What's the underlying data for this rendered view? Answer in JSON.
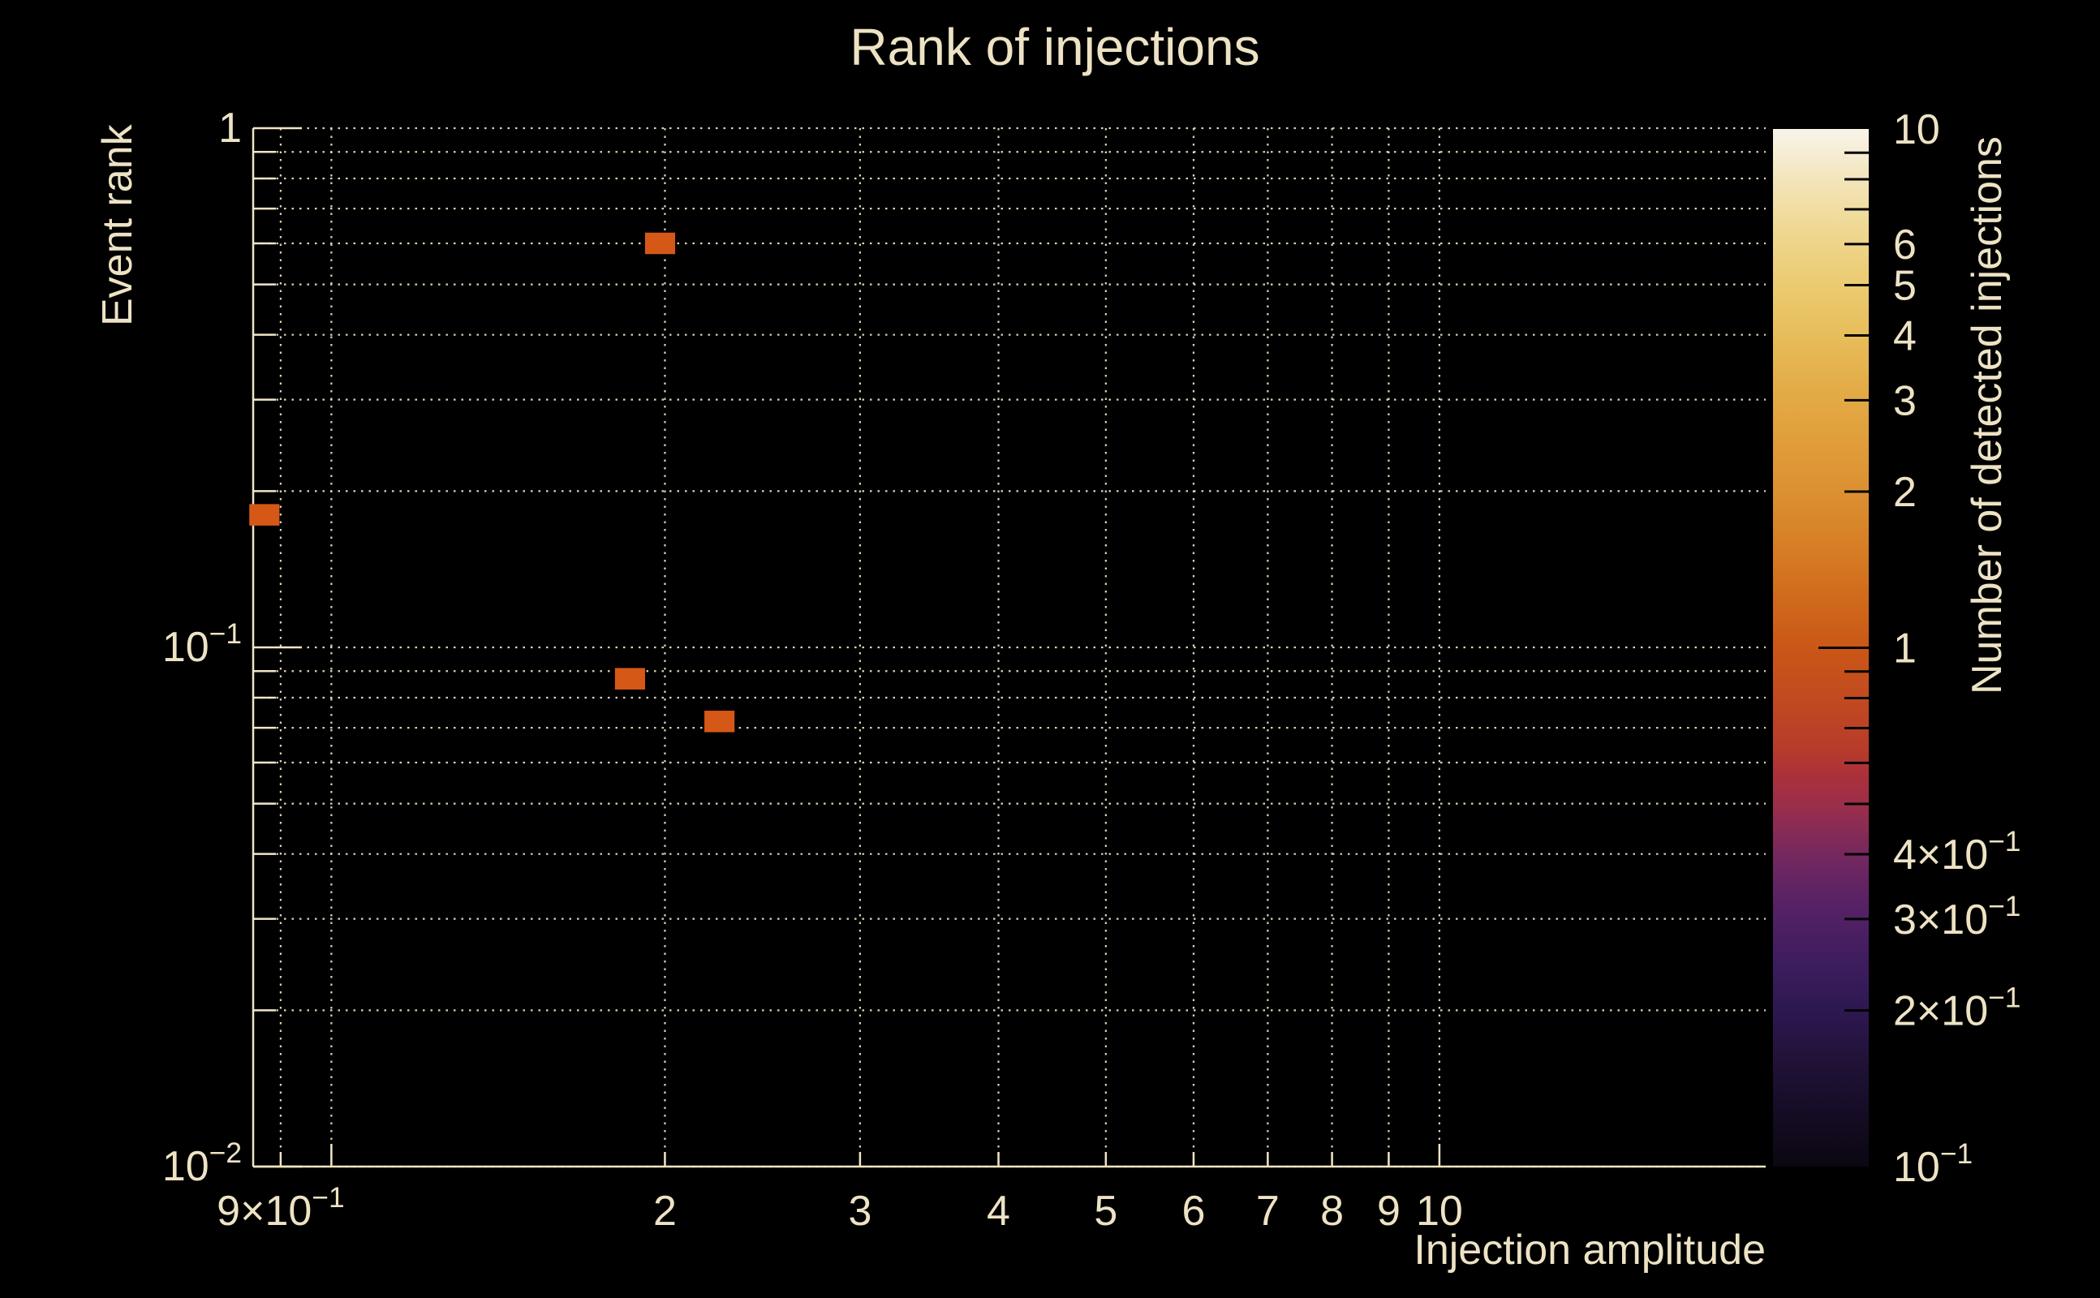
{
  "page": {
    "background": "#000000",
    "foreground": "#ede3c4",
    "grid_color": "#efe5c4"
  },
  "chart_data": {
    "type": "heatmap",
    "title": "Rank of injections",
    "xlabel": "Injection amplitude",
    "ylabel": "Event rank",
    "colorbar_label": "Number of detected injections",
    "x_scale": "log",
    "y_scale": "log",
    "z_scale": "log",
    "xlim": [
      0.85,
      19.7
    ],
    "ylim": [
      0.01,
      1.0
    ],
    "zlim": [
      0.1,
      10.0
    ],
    "grid": true,
    "legend_position": "right-colorbar",
    "x_ticks": [
      {
        "v": 0.9,
        "label": "9×10^-1"
      },
      {
        "v": 2,
        "label": "2"
      },
      {
        "v": 3,
        "label": "3"
      },
      {
        "v": 4,
        "label": "4"
      },
      {
        "v": 5,
        "label": "5"
      },
      {
        "v": 6,
        "label": "6"
      },
      {
        "v": 7,
        "label": "7"
      },
      {
        "v": 8,
        "label": "8"
      },
      {
        "v": 9,
        "label": "9"
      },
      {
        "v": 10,
        "label": "10"
      }
    ],
    "x_grid": [
      0.9,
      1,
      2,
      3,
      4,
      5,
      6,
      7,
      8,
      9,
      10
    ],
    "y_ticks": [
      {
        "v": 1,
        "label": "1"
      },
      {
        "v": 0.1,
        "label": "10^-1"
      },
      {
        "v": 0.01,
        "label": "10^-2"
      }
    ],
    "y_grid": [
      0.01,
      0.02,
      0.03,
      0.04,
      0.05,
      0.06,
      0.07,
      0.08,
      0.09,
      0.1,
      0.2,
      0.3,
      0.4,
      0.5,
      0.6,
      0.7,
      0.8,
      0.9,
      1.0
    ],
    "bins": [
      {
        "x": 1.98,
        "y": 0.6,
        "count": 1
      },
      {
        "x": 0.87,
        "y": 0.18,
        "count": 1
      },
      {
        "x": 1.86,
        "y": 0.087,
        "count": 1
      },
      {
        "x": 2.24,
        "y": 0.072,
        "count": 1
      }
    ],
    "bin_half_width_decades": 0.0136,
    "bin_half_height_decades": 0.0207,
    "bin_color": "#d65817",
    "colorbar": {
      "ticks": [
        {
          "v": 10,
          "label": "10"
        },
        {
          "v": 6,
          "label": "6"
        },
        {
          "v": 5,
          "label": "5"
        },
        {
          "v": 4,
          "label": "4"
        },
        {
          "v": 3,
          "label": "3"
        },
        {
          "v": 2,
          "label": "2"
        },
        {
          "v": 1,
          "label": "1"
        },
        {
          "v": 0.4,
          "label": "4×10^-1"
        },
        {
          "v": 0.3,
          "label": "3×10^-1"
        },
        {
          "v": 0.2,
          "label": "2×10^-1"
        },
        {
          "v": 0.1,
          "label": "10^-1"
        }
      ],
      "minor_ticks": [
        0.2,
        0.3,
        0.4,
        0.5,
        0.6,
        0.7,
        0.8,
        0.9,
        2,
        3,
        4,
        5,
        6,
        7,
        8,
        9
      ],
      "major_ticks": [
        1
      ],
      "gradient": [
        {
          "o": 0.0,
          "c": "#0b0712"
        },
        {
          "o": 0.05,
          "c": "#150c24"
        },
        {
          "o": 0.1,
          "c": "#201237"
        },
        {
          "o": 0.15,
          "c": "#2d1850"
        },
        {
          "o": 0.2,
          "c": "#3f1d60"
        },
        {
          "o": 0.25,
          "c": "#562165"
        },
        {
          "o": 0.29,
          "c": "#6d2761"
        },
        {
          "o": 0.32,
          "c": "#842b57"
        },
        {
          "o": 0.35,
          "c": "#9c2e4a"
        },
        {
          "o": 0.38,
          "c": "#ac3138"
        },
        {
          "o": 0.4,
          "c": "#b63b2b"
        },
        {
          "o": 0.45,
          "c": "#c14a20"
        },
        {
          "o": 0.5,
          "c": "#ca5717"
        },
        {
          "o": 0.55,
          "c": "#d06b1c"
        },
        {
          "o": 0.6,
          "c": "#d77f26"
        },
        {
          "o": 0.65,
          "c": "#dc9032"
        },
        {
          "o": 0.7,
          "c": "#e09e3b"
        },
        {
          "o": 0.75,
          "c": "#e3ac47"
        },
        {
          "o": 0.8,
          "c": "#e7bd5a"
        },
        {
          "o": 0.85,
          "c": "#ebcb72"
        },
        {
          "o": 0.9,
          "c": "#efd78f"
        },
        {
          "o": 0.95,
          "c": "#f3e5ba"
        },
        {
          "o": 1.0,
          "c": "#f8f4ea"
        }
      ]
    }
  }
}
